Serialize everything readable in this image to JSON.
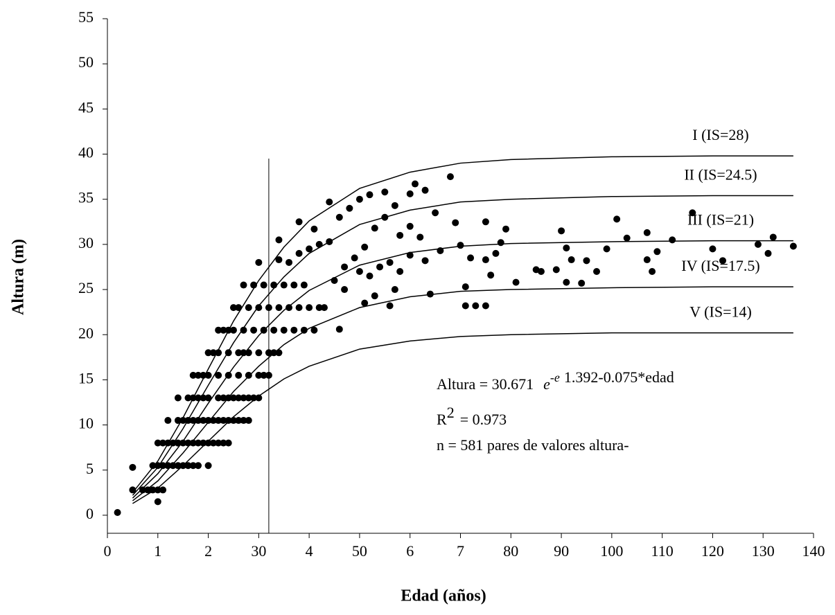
{
  "chart_data": {
    "type": "scatter",
    "x_label": "Edad (años)",
    "y_label": "Altura (m)",
    "xlim": [
      0,
      140
    ],
    "ylim": [
      -2,
      55
    ],
    "xticks": [
      0,
      {
        "value": 10,
        "label": "1"
      },
      {
        "value": 20,
        "label": "2"
      },
      30,
      {
        "value": 40,
        "label": "4"
      },
      50,
      {
        "value": 60,
        "label": "6"
      },
      {
        "value": 70,
        "label": "7"
      },
      80,
      90,
      100,
      110,
      120,
      130,
      140
    ],
    "yticks": [
      0,
      5,
      10,
      15,
      20,
      25,
      30,
      35,
      40,
      45,
      50,
      55
    ],
    "color": "#000000",
    "points": {
      "x": [
        2,
        5,
        5,
        7,
        8,
        9,
        10,
        10,
        11,
        9,
        10,
        11,
        12,
        13,
        14,
        15,
        16,
        17,
        18,
        20,
        10,
        11,
        12,
        13,
        14,
        15,
        16,
        17,
        18,
        19,
        20,
        21,
        22,
        23,
        24,
        12,
        14,
        15,
        16,
        17,
        18,
        19,
        20,
        21,
        22,
        23,
        24,
        25,
        26,
        27,
        28,
        14,
        16,
        17,
        18,
        19,
        20,
        22,
        23,
        24,
        25,
        26,
        27,
        28,
        29,
        30,
        17,
        18,
        19,
        20,
        22,
        24,
        26,
        28,
        30,
        31,
        32,
        20,
        21,
        22,
        24,
        26,
        27,
        28,
        30,
        32,
        33,
        34,
        22,
        23,
        24,
        25,
        27,
        29,
        31,
        33,
        35,
        37,
        39,
        41,
        25,
        26,
        28,
        30,
        32,
        34,
        36,
        38,
        40,
        42,
        43,
        27,
        29,
        31,
        33,
        35,
        37,
        39,
        30,
        34,
        36,
        38,
        40,
        42,
        44,
        34,
        38,
        41,
        44,
        46,
        48,
        50,
        52,
        55,
        57,
        60,
        61,
        63,
        68,
        45,
        47,
        49,
        51,
        53,
        55,
        58,
        60,
        62,
        65,
        66,
        69,
        70,
        47,
        50,
        52,
        54,
        56,
        58,
        60,
        63,
        46,
        51,
        53,
        56,
        57,
        64,
        71,
        71,
        73,
        75,
        72,
        75,
        75,
        76,
        77,
        78,
        79,
        81,
        85,
        86,
        89,
        90,
        91,
        91,
        92,
        94,
        95,
        97,
        99,
        101,
        103,
        107,
        107,
        108,
        109,
        112,
        116,
        120,
        122,
        129,
        131,
        132,
        136
      ],
      "y": [
        0.3,
        2.8,
        5.3,
        2.8,
        2.8,
        2.8,
        2.8,
        1.5,
        2.8,
        5.5,
        5.5,
        5.5,
        5.5,
        5.5,
        5.5,
        5.5,
        5.5,
        5.5,
        5.5,
        5.5,
        8,
        8,
        8,
        8,
        8,
        8,
        8,
        8,
        8,
        8,
        8,
        8,
        8,
        8,
        8,
        10.5,
        10.5,
        10.5,
        10.5,
        10.5,
        10.5,
        10.5,
        10.5,
        10.5,
        10.5,
        10.5,
        10.5,
        10.5,
        10.5,
        10.5,
        10.5,
        13,
        13,
        13,
        13,
        13,
        13,
        13,
        13,
        13,
        13,
        13,
        13,
        13,
        13,
        13,
        15.5,
        15.5,
        15.5,
        15.5,
        15.5,
        15.5,
        15.5,
        15.5,
        15.5,
        15.5,
        15.5,
        18,
        18,
        18,
        18,
        18,
        18,
        18,
        18,
        18,
        18,
        18,
        20.5,
        20.5,
        20.5,
        20.5,
        20.5,
        20.5,
        20.5,
        20.5,
        20.5,
        20.5,
        20.5,
        20.5,
        23,
        23,
        23,
        23,
        23,
        23,
        23,
        23,
        23,
        23,
        23,
        25.5,
        25.5,
        25.5,
        25.5,
        25.5,
        25.5,
        25.5,
        28,
        28.3,
        28,
        29,
        29.5,
        30,
        30.3,
        30.5,
        32.5,
        31.7,
        34.7,
        33,
        34,
        35,
        35.5,
        35.8,
        34.3,
        35.6,
        36.7,
        36,
        37.5,
        26,
        27.5,
        28.5,
        29.7,
        31.8,
        33,
        31,
        32,
        30.8,
        33.5,
        29.3,
        32.4,
        29.9,
        25,
        27,
        26.5,
        27.5,
        28,
        27,
        28.8,
        28.2,
        20.6,
        23.5,
        24.3,
        23.2,
        25,
        24.5,
        25.3,
        23.2,
        23.2,
        23.2,
        28.5,
        28.3,
        32.5,
        26.6,
        29,
        30.2,
        31.7,
        25.8,
        27.2,
        27,
        27.2,
        31.5,
        29.6,
        25.8,
        28.3,
        25.7,
        28.2,
        27,
        29.5,
        32.8,
        30.7,
        31.3,
        28.3,
        27,
        29.2,
        30.5,
        33.5,
        29.5,
        28.2,
        30,
        29,
        30.8,
        29.8
      ]
    },
    "curves": {
      "x": [
        5,
        10,
        15,
        20,
        25,
        30,
        35,
        40,
        50,
        60,
        70,
        80,
        100,
        120,
        136
      ],
      "series": [
        {
          "name": "I (IS=28)",
          "values": [
            2.5,
            6.0,
            10.8,
            16.2,
            21.5,
            26.0,
            29.7,
            32.6,
            36.2,
            38.0,
            39.0,
            39.4,
            39.7,
            39.8,
            39.8
          ]
        },
        {
          "name": "II (IS=24.5)",
          "values": [
            2.2,
            5.3,
            9.6,
            14.4,
            19.1,
            23.2,
            26.4,
            29.0,
            32.2,
            33.8,
            34.7,
            35.0,
            35.3,
            35.4,
            35.4
          ]
        },
        {
          "name": "III (IS=21)",
          "values": [
            1.9,
            4.6,
            8.2,
            12.4,
            16.4,
            19.9,
            22.7,
            24.9,
            27.7,
            29.1,
            29.8,
            30.1,
            30.3,
            30.4,
            30.4
          ]
        },
        {
          "name": "IV (IS=17.5)",
          "values": [
            1.6,
            3.8,
            6.9,
            10.3,
            13.7,
            16.5,
            18.9,
            20.7,
            23.0,
            24.2,
            24.8,
            25.0,
            25.2,
            25.3,
            25.3
          ]
        },
        {
          "name": "V (IS=14)",
          "values": [
            1.3,
            3.0,
            5.5,
            8.2,
            10.9,
            13.2,
            15.1,
            16.5,
            18.4,
            19.3,
            19.8,
            20.0,
            20.2,
            20.2,
            20.2
          ]
        }
      ]
    },
    "reference_line": {
      "x": 32,
      "top": 39.5
    },
    "equation": {
      "prefix": "Altura = 30.671",
      "base": "e",
      "exponent": "-e",
      "tail": "1.392-0.075*edad"
    },
    "r2": {
      "base": "R",
      "exponent": "2",
      "text": "= 0.973"
    },
    "note": "n = 581 pares de valores altura-"
  }
}
